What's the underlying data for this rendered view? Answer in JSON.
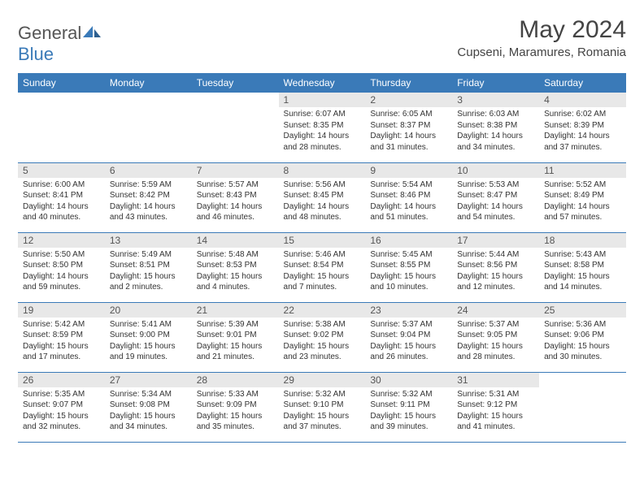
{
  "logo": {
    "text1": "General",
    "text2": "Blue"
  },
  "title": "May 2024",
  "location": "Cupseni, Maramures, Romania",
  "headers": [
    "Sunday",
    "Monday",
    "Tuesday",
    "Wednesday",
    "Thursday",
    "Friday",
    "Saturday"
  ],
  "colors": {
    "header_bg": "#3a7ab8",
    "header_fg": "#ffffff",
    "daynum_bg": "#e8e8e8",
    "border": "#3a7ab8",
    "logo_blue": "#3a7ab8"
  },
  "weeks": [
    [
      null,
      null,
      null,
      {
        "n": "1",
        "sr": "6:07 AM",
        "ss": "8:35 PM",
        "dl": "14 hours and 28 minutes."
      },
      {
        "n": "2",
        "sr": "6:05 AM",
        "ss": "8:37 PM",
        "dl": "14 hours and 31 minutes."
      },
      {
        "n": "3",
        "sr": "6:03 AM",
        "ss": "8:38 PM",
        "dl": "14 hours and 34 minutes."
      },
      {
        "n": "4",
        "sr": "6:02 AM",
        "ss": "8:39 PM",
        "dl": "14 hours and 37 minutes."
      }
    ],
    [
      {
        "n": "5",
        "sr": "6:00 AM",
        "ss": "8:41 PM",
        "dl": "14 hours and 40 minutes."
      },
      {
        "n": "6",
        "sr": "5:59 AM",
        "ss": "8:42 PM",
        "dl": "14 hours and 43 minutes."
      },
      {
        "n": "7",
        "sr": "5:57 AM",
        "ss": "8:43 PM",
        "dl": "14 hours and 46 minutes."
      },
      {
        "n": "8",
        "sr": "5:56 AM",
        "ss": "8:45 PM",
        "dl": "14 hours and 48 minutes."
      },
      {
        "n": "9",
        "sr": "5:54 AM",
        "ss": "8:46 PM",
        "dl": "14 hours and 51 minutes."
      },
      {
        "n": "10",
        "sr": "5:53 AM",
        "ss": "8:47 PM",
        "dl": "14 hours and 54 minutes."
      },
      {
        "n": "11",
        "sr": "5:52 AM",
        "ss": "8:49 PM",
        "dl": "14 hours and 57 minutes."
      }
    ],
    [
      {
        "n": "12",
        "sr": "5:50 AM",
        "ss": "8:50 PM",
        "dl": "14 hours and 59 minutes."
      },
      {
        "n": "13",
        "sr": "5:49 AM",
        "ss": "8:51 PM",
        "dl": "15 hours and 2 minutes."
      },
      {
        "n": "14",
        "sr": "5:48 AM",
        "ss": "8:53 PM",
        "dl": "15 hours and 4 minutes."
      },
      {
        "n": "15",
        "sr": "5:46 AM",
        "ss": "8:54 PM",
        "dl": "15 hours and 7 minutes."
      },
      {
        "n": "16",
        "sr": "5:45 AM",
        "ss": "8:55 PM",
        "dl": "15 hours and 10 minutes."
      },
      {
        "n": "17",
        "sr": "5:44 AM",
        "ss": "8:56 PM",
        "dl": "15 hours and 12 minutes."
      },
      {
        "n": "18",
        "sr": "5:43 AM",
        "ss": "8:58 PM",
        "dl": "15 hours and 14 minutes."
      }
    ],
    [
      {
        "n": "19",
        "sr": "5:42 AM",
        "ss": "8:59 PM",
        "dl": "15 hours and 17 minutes."
      },
      {
        "n": "20",
        "sr": "5:41 AM",
        "ss": "9:00 PM",
        "dl": "15 hours and 19 minutes."
      },
      {
        "n": "21",
        "sr": "5:39 AM",
        "ss": "9:01 PM",
        "dl": "15 hours and 21 minutes."
      },
      {
        "n": "22",
        "sr": "5:38 AM",
        "ss": "9:02 PM",
        "dl": "15 hours and 23 minutes."
      },
      {
        "n": "23",
        "sr": "5:37 AM",
        "ss": "9:04 PM",
        "dl": "15 hours and 26 minutes."
      },
      {
        "n": "24",
        "sr": "5:37 AM",
        "ss": "9:05 PM",
        "dl": "15 hours and 28 minutes."
      },
      {
        "n": "25",
        "sr": "5:36 AM",
        "ss": "9:06 PM",
        "dl": "15 hours and 30 minutes."
      }
    ],
    [
      {
        "n": "26",
        "sr": "5:35 AM",
        "ss": "9:07 PM",
        "dl": "15 hours and 32 minutes."
      },
      {
        "n": "27",
        "sr": "5:34 AM",
        "ss": "9:08 PM",
        "dl": "15 hours and 34 minutes."
      },
      {
        "n": "28",
        "sr": "5:33 AM",
        "ss": "9:09 PM",
        "dl": "15 hours and 35 minutes."
      },
      {
        "n": "29",
        "sr": "5:32 AM",
        "ss": "9:10 PM",
        "dl": "15 hours and 37 minutes."
      },
      {
        "n": "30",
        "sr": "5:32 AM",
        "ss": "9:11 PM",
        "dl": "15 hours and 39 minutes."
      },
      {
        "n": "31",
        "sr": "5:31 AM",
        "ss": "9:12 PM",
        "dl": "15 hours and 41 minutes."
      },
      null
    ]
  ],
  "labels": {
    "sunrise": "Sunrise:",
    "sunset": "Sunset:",
    "daylight": "Daylight:"
  }
}
